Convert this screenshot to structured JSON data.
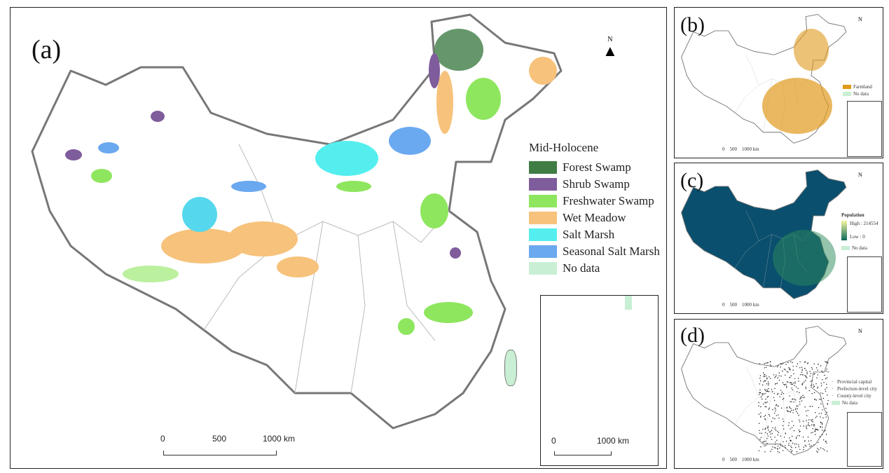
{
  "panel_a": {
    "label": "(a)",
    "north": "N",
    "legend_title": "Mid-Holocene",
    "legend": [
      {
        "label": "Forest Swamp",
        "color": "#3f7d45"
      },
      {
        "label": "Shrub Swamp",
        "color": "#7f5c9c"
      },
      {
        "label": "Freshwater Swamp",
        "color": "#8ee65e"
      },
      {
        "label": "Wet Meadow",
        "color": "#f7c27b"
      },
      {
        "label": "Salt Marsh",
        "color": "#55eeee"
      },
      {
        "label": "Seasonal Salt Marsh",
        "color": "#6aa8f0"
      },
      {
        "label": "No data",
        "color": "#c8efd4"
      }
    ],
    "scale": [
      "0",
      "500",
      "1000 km"
    ],
    "inset_scale": [
      "0",
      "1000 km"
    ]
  },
  "panel_b": {
    "label": "(b)",
    "north": "N",
    "legend": [
      {
        "label": "Farmland",
        "color": "#e09a1c"
      },
      {
        "label": "No data",
        "color": "#c8efd4"
      }
    ],
    "scale": [
      "0",
      "500",
      "1000 km"
    ]
  },
  "panel_c": {
    "label": "(c)",
    "north": "N",
    "legend_title": "Population",
    "high": "High : 214554",
    "low": "Low : 0",
    "no_data": "No data",
    "colors": {
      "background": "#0a4f6e",
      "high": "#f5f7a0",
      "low": "#0a6b5a",
      "no_data": "#c8efd4"
    },
    "scale": [
      "0",
      "500",
      "1000 km"
    ]
  },
  "panel_d": {
    "label": "(d)",
    "north": "N",
    "legend": [
      {
        "label": "Provincial capital"
      },
      {
        "label": "Prefecture-level city"
      },
      {
        "label": "County-level city"
      },
      {
        "label": "No data",
        "color": "#c8efd4"
      }
    ],
    "scale": [
      "0",
      "500",
      "1000 km"
    ]
  }
}
